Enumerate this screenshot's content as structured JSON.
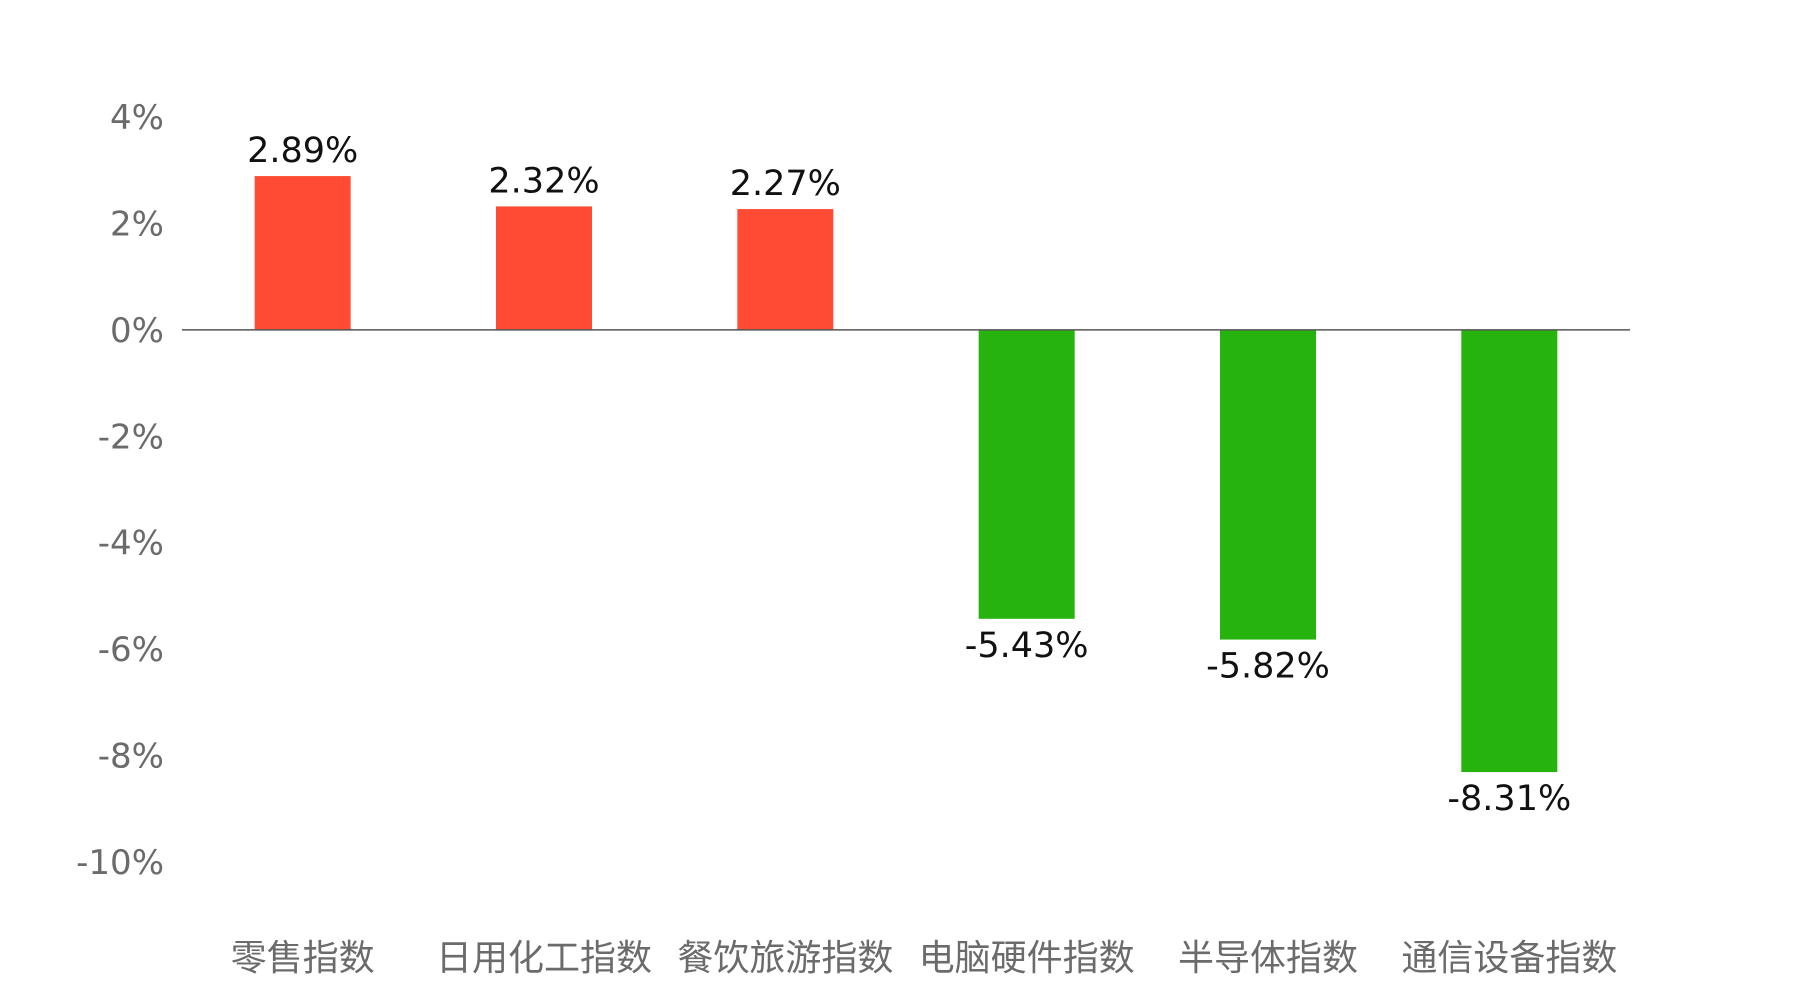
{
  "chart_data": {
    "type": "bar",
    "title": "",
    "xlabel": "",
    "ylabel": "",
    "categories": [
      "零售指数",
      "日用化工指数",
      "餐饮旅游指数",
      "电脑硬件指数",
      "半导体指数",
      "通信设备指数"
    ],
    "values": [
      2.89,
      2.32,
      2.27,
      -5.43,
      -5.82,
      -8.31
    ],
    "data_labels": [
      "2.89%",
      "2.32%",
      "2.27%",
      "-5.43%",
      "-5.82%",
      "-8.31%"
    ],
    "ylim": [
      -10,
      4
    ],
    "yticks": [
      4,
      2,
      0,
      -2,
      -4,
      -6,
      -8,
      -10
    ],
    "ytick_labels": [
      "4%",
      "2%",
      "0%",
      "-2%",
      "-4%",
      "-6%",
      "-8%",
      "-10%"
    ],
    "grid": false,
    "legend": "none",
    "colors": {
      "positive": "#FF4B33",
      "negative": "#27B30E",
      "axis": "#555555"
    }
  }
}
